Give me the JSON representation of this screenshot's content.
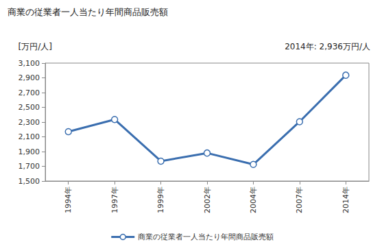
{
  "chart_data": {
    "type": "line",
    "title": "商業の従業者一人当たり年間商品販売額",
    "y_label": "[万円/人]",
    "annotation": "2014年: 2,936万円/人",
    "categories": [
      "1994年",
      "1997年",
      "1999年",
      "2002年",
      "2004年",
      "2007年",
      "2014年"
    ],
    "series": [
      {
        "name": "商業の従業者一人当たり年間商品販売額",
        "color": "#3a6eaf",
        "marker": "circle",
        "values": [
          2170,
          2335,
          1770,
          1880,
          1725,
          2305,
          2936
        ]
      }
    ],
    "ylim": [
      1500,
      3100
    ],
    "yticks": [
      {
        "value": 1500,
        "label": "1,500"
      },
      {
        "value": 1700,
        "label": "1,700"
      },
      {
        "value": 1900,
        "label": "1,900"
      },
      {
        "value": 2100,
        "label": "2,100"
      },
      {
        "value": 2300,
        "label": "2,300"
      },
      {
        "value": 2500,
        "label": "2,500"
      },
      {
        "value": 2700,
        "label": "2,700"
      },
      {
        "value": 2900,
        "label": "2,900"
      },
      {
        "value": 3100,
        "label": "3,100"
      }
    ],
    "grid": false,
    "legend": "bottom"
  }
}
